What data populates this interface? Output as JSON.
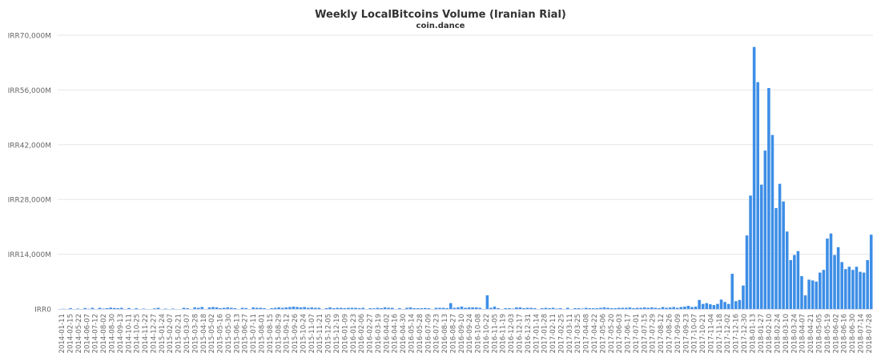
{
  "chart_data": {
    "type": "bar",
    "title": "Weekly LocalBitcoins Volume (Iranian Rial)",
    "subtitle": "coin.dance",
    "xlabel": "",
    "ylabel": "",
    "ylim": [
      0,
      70000000000
    ],
    "y_ticks": [
      {
        "value": 0,
        "label": "IRR0"
      },
      {
        "value": 14000000000,
        "label": "IRR14,000M"
      },
      {
        "value": 28000000000,
        "label": "IRR28,000M"
      },
      {
        "value": 42000000000,
        "label": "IRR42,000M"
      },
      {
        "value": 56000000000,
        "label": "IRR56,000M"
      },
      {
        "value": 70000000000,
        "label": "IRR70,000M"
      }
    ],
    "grid": true,
    "legend": "none",
    "bar_color": "#3d8ee6",
    "x_labels": [
      "2014-01-11",
      "2014-02-15",
      "2014-05-22",
      "2014-06-07",
      "2014-07-12",
      "2014-08-02",
      "2014-08-30",
      "2014-09-13",
      "2014-10-11",
      "2014-10-25",
      "2014-11-22",
      "2014-12-27",
      "2015-01-24",
      "2015-02-07",
      "2015-02-21",
      "2015-03-07",
      "2015-03-28",
      "2015-04-18",
      "2015-05-02",
      "2015-05-16",
      "2015-05-30",
      "2015-06-13",
      "2015-06-27",
      "2015-07-11",
      "2015-08-01",
      "2015-08-15",
      "2015-08-29",
      "2015-09-12",
      "2015-09-26",
      "2015-10-24",
      "2015-11-07",
      "2015-11-21",
      "2015-12-05",
      "2015-12-19",
      "2016-01-09",
      "2016-01-23",
      "2016-02-06",
      "2016-02-27",
      "2016-03-19",
      "2016-04-02",
      "2016-04-16",
      "2016-04-30",
      "2016-05-14",
      "2016-05-28",
      "2016-07-09",
      "2016-07-23",
      "2016-08-13",
      "2016-08-27",
      "2016-09-10",
      "2016-09-24",
      "2016-10-08",
      "2016-10-22",
      "2016-11-05",
      "2016-11-19",
      "2016-12-03",
      "2016-12-17",
      "2016-12-31",
      "2017-01-14",
      "2017-01-28",
      "2017-02-11",
      "2017-02-25",
      "2017-03-11",
      "2017-03-25",
      "2017-04-08",
      "2017-04-22",
      "2017-05-06",
      "2017-05-20",
      "2017-06-03",
      "2017-06-17",
      "2017-07-01",
      "2017-07-15",
      "2017-07-29",
      "2017-08-12",
      "2017-08-26",
      "2017-09-09",
      "2017-09-23",
      "2017-10-07",
      "2017-10-21",
      "2017-11-04",
      "2017-11-18",
      "2017-12-02",
      "2017-12-16",
      "2017-12-30",
      "2018-01-13",
      "2018-01-27",
      "2018-02-10",
      "2018-02-24",
      "2018-03-10",
      "2018-03-24",
      "2018-04-07",
      "2018-04-21",
      "2018-05-05",
      "2018-05-19",
      "2018-06-02",
      "2018-06-16",
      "2018-06-30",
      "2018-07-14",
      "2018-07-28"
    ],
    "values": [
      0,
      0.05,
      0,
      0.2,
      0,
      0.1,
      0,
      0.25,
      0.05,
      0.3,
      0,
      0.3,
      0.1,
      0.2,
      0.35,
      0.25,
      0.2,
      0.3,
      0,
      0.25,
      0,
      0.2,
      0,
      0.1,
      0,
      0,
      0.15,
      0.3,
      0,
      0.1,
      0,
      0.1,
      0,
      0,
      0.3,
      0.2,
      0,
      0.4,
      0.3,
      0.5,
      0,
      0.4,
      0.5,
      0.4,
      0.2,
      0.3,
      0.4,
      0.3,
      0.2,
      0,
      0.3,
      0.25,
      0,
      0.4,
      0.3,
      0.3,
      0.2,
      0,
      0.2,
      0.3,
      0.4,
      0.3,
      0.4,
      0.5,
      0.6,
      0.5,
      0.4,
      0.5,
      0.3,
      0.4,
      0.3,
      0.3,
      0,
      0.2,
      0.4,
      0.2,
      0.3,
      0.3,
      0.2,
      0.3,
      0.3,
      0.3,
      0.2,
      0.3,
      0,
      0.2,
      0.15,
      0.3,
      0.2,
      0.4,
      0.3,
      0.3,
      0,
      0.2,
      0,
      0.3,
      0.4,
      0.2,
      0.2,
      0.2,
      0.25,
      0.2,
      0,
      0.3,
      0.3,
      0.3,
      0.2,
      1.5,
      0.3,
      0.4,
      0.6,
      0.3,
      0.4,
      0.4,
      0.4,
      0.3,
      0,
      3.5,
      0.3,
      0.6,
      0.2,
      0,
      0.2,
      0.2,
      0.1,
      0.4,
      0.4,
      0.2,
      0.3,
      0.3,
      0.2,
      0,
      0.2,
      0.3,
      0.2,
      0.3,
      0.1,
      0.2,
      0,
      0.3,
      0,
      0.2,
      0.2,
      0.1,
      0.3,
      0.2,
      0.2,
      0.2,
      0.3,
      0.4,
      0.3,
      0.2,
      0.2,
      0.3,
      0.3,
      0.3,
      0.4,
      0.2,
      0.3,
      0.3,
      0.4,
      0.3,
      0.4,
      0.3,
      0.2,
      0.5,
      0.3,
      0.4,
      0.5,
      0.3,
      0.5,
      0.6,
      0.8,
      0.5,
      0.6,
      2.3,
      1.3,
      1.5,
      1.2,
      1.0,
      1.3,
      2.4,
      1.8,
      1.3,
      9.0,
      2.0,
      2.3,
      6.0,
      18.8,
      29.0,
      67.0,
      58.0,
      31.8,
      40.5,
      56.5,
      44.5,
      25.8,
      32.0,
      27.5,
      19.8,
      12.5,
      13.8,
      14.8,
      8.4,
      3.5,
      7.5,
      7.3,
      7.0,
      9.3,
      10.0,
      18.0,
      19.3,
      13.8,
      15.8,
      12.0,
      10.2,
      10.8,
      10.0,
      10.8,
      9.5,
      9.3,
      12.5,
      19.0
    ]
  }
}
